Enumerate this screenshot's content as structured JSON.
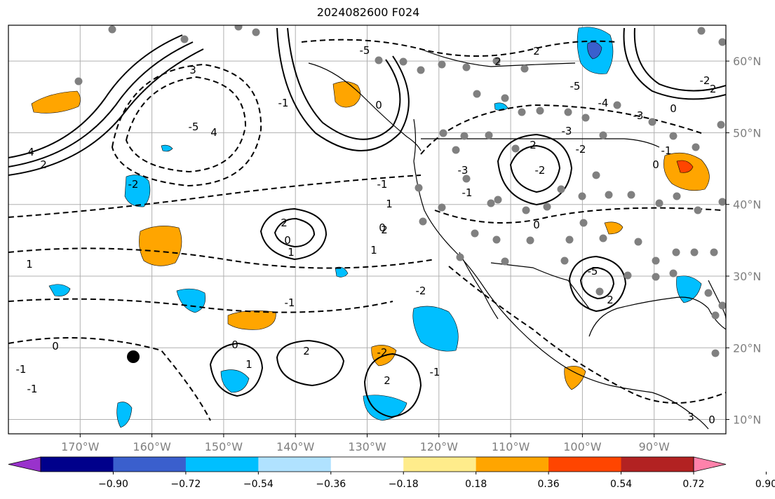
{
  "title": "2024082600 F024",
  "map": {
    "lon_range": [
      -180,
      -80
    ],
    "lat_range": [
      8,
      65
    ],
    "lon_ticks": [
      "170°W",
      "160°W",
      "150°W",
      "140°W",
      "130°W",
      "120°W",
      "110°W",
      "100°W",
      "90°W"
    ],
    "lat_ticks": [
      "60°N",
      "50°N",
      "40°N",
      "30°N",
      "20°N",
      "10°N"
    ],
    "grid": true,
    "contour_labels": [
      "4",
      "2",
      "-5",
      "4",
      "3",
      "-5",
      "-2",
      "0",
      "-1",
      "1",
      "2",
      "-1",
      "0",
      "1",
      "2",
      "1",
      "0",
      "-1",
      "-1",
      "0",
      "1",
      "2",
      "-1",
      "2",
      "-2",
      "-2",
      "-3",
      "0",
      "2",
      "-5",
      "-3",
      "-2",
      "2",
      "-2",
      "-4",
      "-3",
      "-5",
      "2",
      "2",
      "-1",
      "1",
      "0",
      "-1",
      "0",
      "-1",
      "-2",
      "0",
      "-2",
      "3",
      "0"
    ]
  },
  "colorbar": {
    "ticks": [
      "−0.90",
      "−0.72",
      "−0.54",
      "−0.36",
      "−0.18",
      "0.18",
      "0.36",
      "0.54",
      "0.72",
      "0.90"
    ],
    "colors": [
      "#9932cc",
      "#00008b",
      "#3a5fcd",
      "#00bfff",
      "#b0e2ff",
      "#ffffff",
      "#ffec8b",
      "#ffa500",
      "#ff4500",
      "#b22222",
      "#ff82ab"
    ]
  }
}
